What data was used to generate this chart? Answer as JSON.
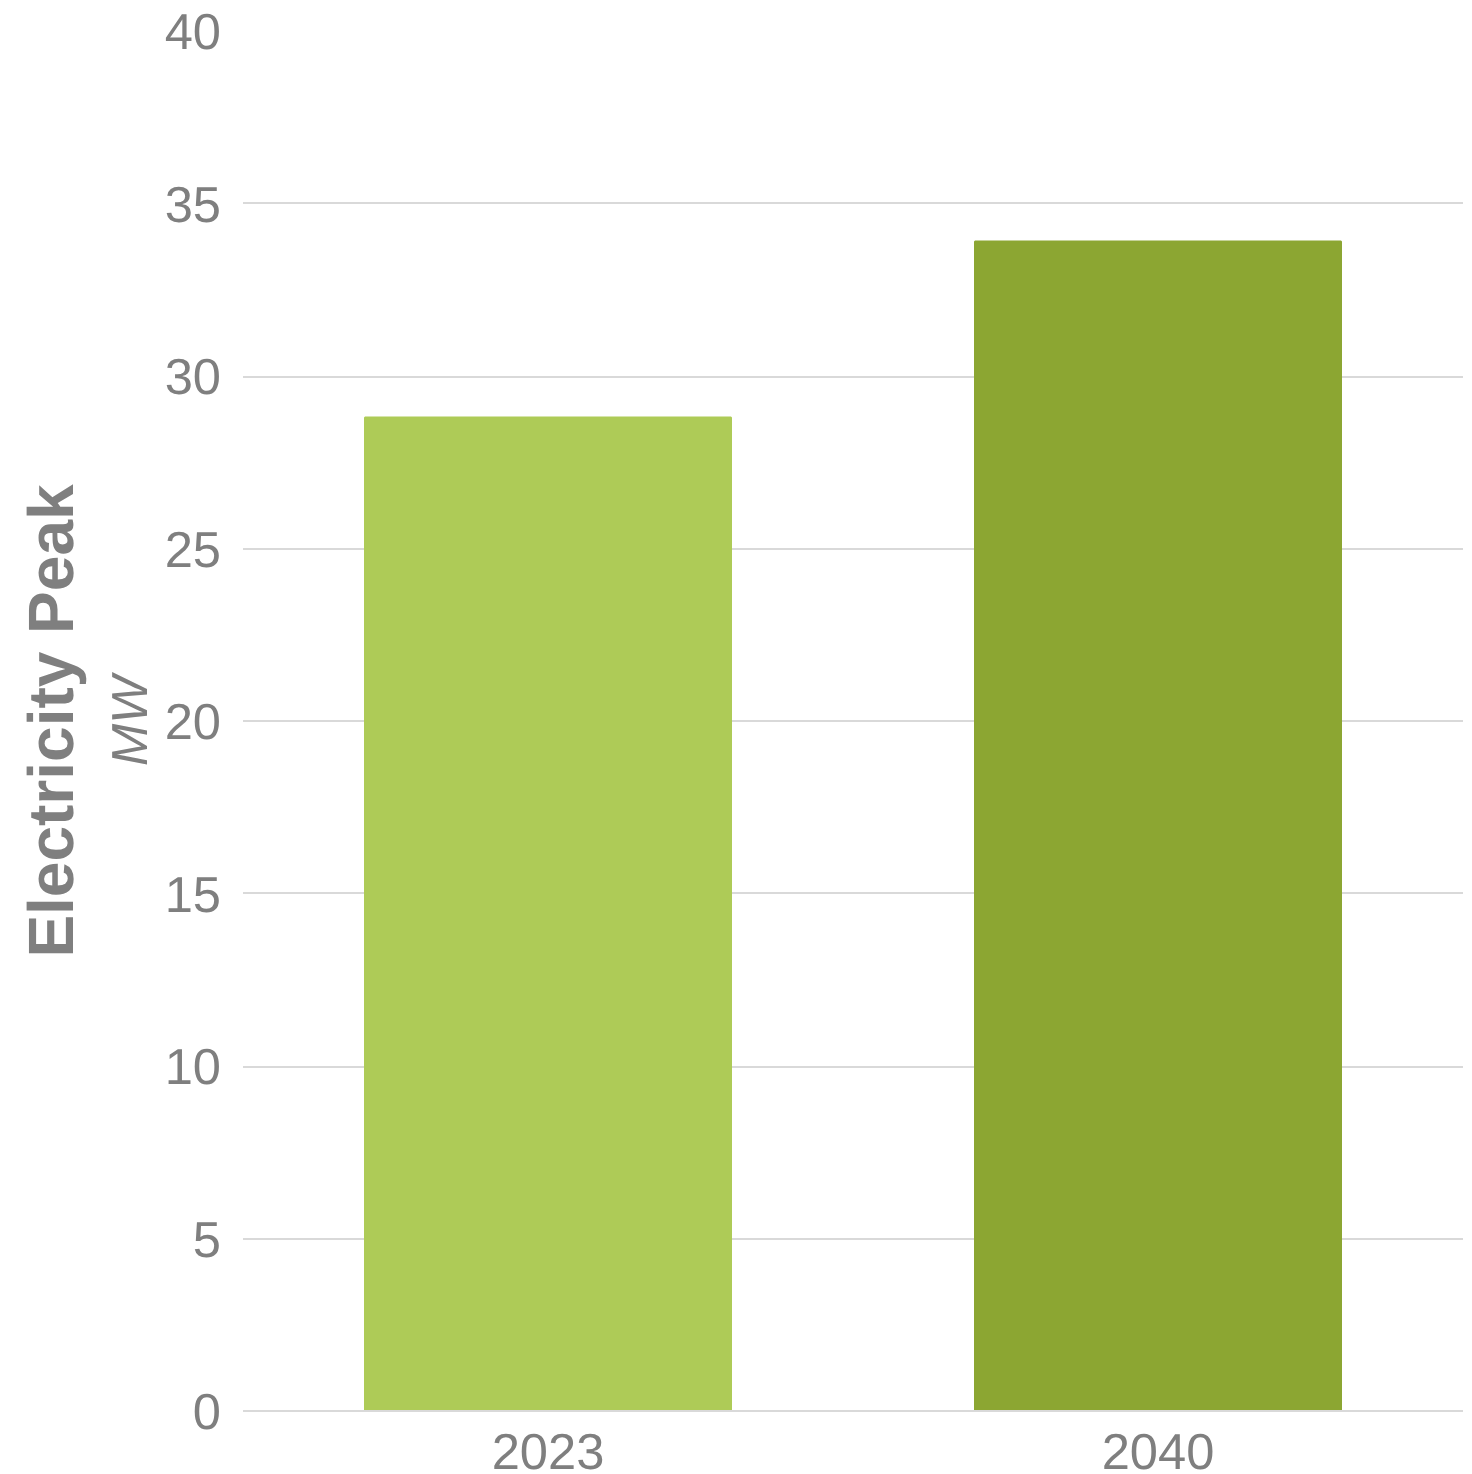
{
  "chart_data": {
    "type": "bar",
    "ylabel": "Electricity Peak",
    "annotations": [
      "MW"
    ],
    "categories": [
      "2023",
      "2040"
    ],
    "values": [
      28.8,
      33.9
    ],
    "colors": [
      "#aecb57",
      "#8ca632"
    ],
    "ylim": [
      0,
      40
    ],
    "yticks": [
      0,
      5,
      10,
      15,
      20,
      25,
      30,
      35,
      40
    ],
    "grid": "y"
  }
}
